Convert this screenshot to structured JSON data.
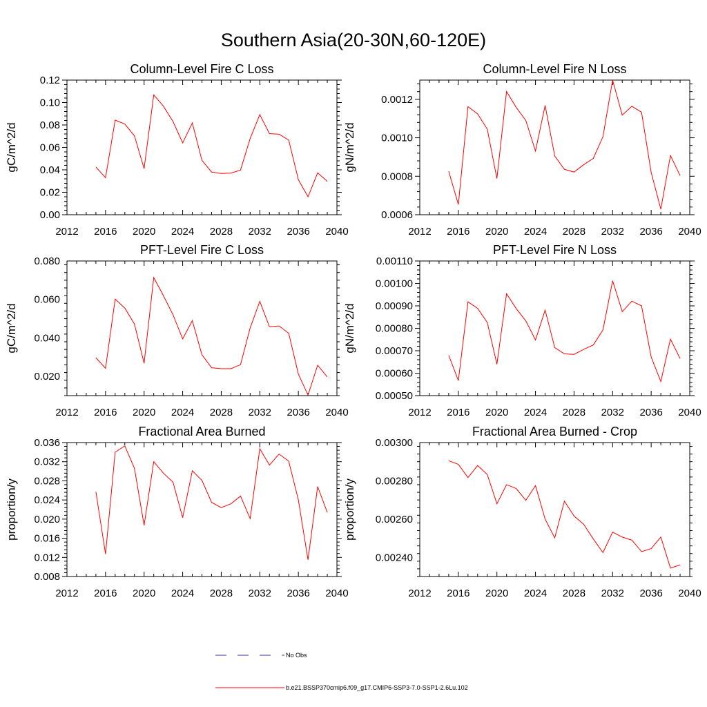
{
  "title": "Southern Asia(20-30N,60-120E)",
  "legend": {
    "items": [
      {
        "label": "No Obs",
        "color": "#3a3aa8",
        "dash": "dashed"
      },
      {
        "label": "b.e21.BSSP370cmip6.f09_g17.CMIP6-SSP3-7.0-SSP1-2.6Lu.102",
        "color": "#ff0000",
        "dash": "solid"
      }
    ]
  },
  "chart_data": [
    {
      "type": "line",
      "title": "Column-Level Fire C Loss",
      "ylabel": "gC/m^2/d",
      "xlim": [
        2012,
        2040
      ],
      "ylim": [
        0.0,
        0.12
      ],
      "xticks": [
        2012,
        2016,
        2020,
        2024,
        2028,
        2032,
        2036,
        2040
      ],
      "yticks": [
        "0.00",
        "0.02",
        "0.04",
        "0.06",
        "0.08",
        "0.10",
        "0.12"
      ],
      "x": [
        2015,
        2016,
        2017,
        2018,
        2019,
        2020,
        2021,
        2022,
        2023,
        2024,
        2025,
        2026,
        2027,
        2028,
        2029,
        2030,
        2031,
        2032,
        2033,
        2034,
        2035,
        2036,
        2037,
        2038,
        2039
      ],
      "series": [
        {
          "name": "b.e21.BSSP370cmip6.f09_g17.CMIP6-SSP3-7.0-SSP1-2.6Lu.102",
          "color": "#ff0000",
          "values": [
            0.0425,
            0.033,
            0.0843,
            0.0808,
            0.0703,
            0.0411,
            0.1068,
            0.0968,
            0.083,
            0.064,
            0.0818,
            0.0485,
            0.038,
            0.0368,
            0.0371,
            0.0398,
            0.0679,
            0.0892,
            0.0723,
            0.0718,
            0.0665,
            0.0312,
            0.016,
            0.0373,
            0.0298
          ]
        }
      ]
    },
    {
      "type": "line",
      "title": "Column-Level Fire N Loss",
      "ylabel": "gN/m^2/d",
      "xlim": [
        2012,
        2040
      ],
      "ylim": [
        0.0006,
        0.0013
      ],
      "xticks": [
        2012,
        2016,
        2020,
        2024,
        2028,
        2032,
        2036,
        2040
      ],
      "yticks": [
        "0.0006",
        "0.0008",
        "0.0010",
        "0.0012"
      ],
      "x": [
        2015,
        2016,
        2017,
        2018,
        2019,
        2020,
        2021,
        2022,
        2023,
        2024,
        2025,
        2026,
        2027,
        2028,
        2029,
        2030,
        2031,
        2032,
        2033,
        2034,
        2035,
        2036,
        2037,
        2038,
        2039
      ],
      "series": [
        {
          "name": "b.e21.BSSP370cmip6.f09_g17.CMIP6-SSP3-7.0-SSP1-2.6Lu.102",
          "color": "#ff0000",
          "values": [
            0.000826,
            0.000653,
            0.001162,
            0.001124,
            0.001045,
            0.000788,
            0.001241,
            0.001158,
            0.00109,
            0.000931,
            0.001168,
            0.000905,
            0.000836,
            0.000822,
            0.00086,
            0.000893,
            0.001006,
            0.0013,
            0.001118,
            0.001164,
            0.001133,
            0.00082,
            0.000629,
            0.000908,
            0.000803
          ]
        }
      ]
    },
    {
      "type": "line",
      "title": "PFT-Level Fire C Loss",
      "ylabel": "gC/m^2/d",
      "xlim": [
        2012,
        2040
      ],
      "ylim": [
        0.01,
        0.08
      ],
      "xticks": [
        2012,
        2016,
        2020,
        2024,
        2028,
        2032,
        2036,
        2040
      ],
      "yticks": [
        "0.020",
        "0.040",
        "0.060",
        "0.080"
      ],
      "x": [
        2015,
        2016,
        2017,
        2018,
        2019,
        2020,
        2021,
        2022,
        2023,
        2024,
        2025,
        2026,
        2027,
        2028,
        2029,
        2030,
        2031,
        2032,
        2033,
        2034,
        2035,
        2036,
        2037,
        2038,
        2039
      ],
      "series": [
        {
          "name": "b.e21.BSSP370cmip6.f09_g17.CMIP6-SSP3-7.0-SSP1-2.6Lu.102",
          "color": "#ff0000",
          "values": [
            0.0297,
            0.0242,
            0.0602,
            0.0555,
            0.0472,
            0.0268,
            0.0714,
            0.062,
            0.052,
            0.0395,
            0.049,
            0.0312,
            0.0245,
            0.024,
            0.024,
            0.0261,
            0.0452,
            0.059,
            0.0458,
            0.0462,
            0.0424,
            0.0212,
            0.0103,
            0.0258,
            0.0197
          ]
        }
      ]
    },
    {
      "type": "line",
      "title": "PFT-Level Fire N Loss",
      "ylabel": "gN/m^2/d",
      "xlim": [
        2012,
        2040
      ],
      "ylim": [
        0.0005,
        0.0011
      ],
      "xticks": [
        2012,
        2016,
        2020,
        2024,
        2028,
        2032,
        2036,
        2040
      ],
      "yticks": [
        "0.00050",
        "0.00060",
        "0.00070",
        "0.00080",
        "0.00090",
        "0.00100",
        "0.00110"
      ],
      "x": [
        2015,
        2016,
        2017,
        2018,
        2019,
        2020,
        2021,
        2022,
        2023,
        2024,
        2025,
        2026,
        2027,
        2028,
        2029,
        2030,
        2031,
        2032,
        2033,
        2034,
        2035,
        2036,
        2037,
        2038,
        2039
      ],
      "series": [
        {
          "name": "b.e21.BSSP370cmip6.f09_g17.CMIP6-SSP3-7.0-SSP1-2.6Lu.102",
          "color": "#ff0000",
          "values": [
            0.00068,
            0.000567,
            0.000918,
            0.000889,
            0.000826,
            0.00064,
            0.000954,
            0.000888,
            0.000833,
            0.000748,
            0.000881,
            0.000714,
            0.000686,
            0.000684,
            0.000706,
            0.000726,
            0.000793,
            0.001012,
            0.000874,
            0.000921,
            0.0009,
            0.000672,
            0.000563,
            0.000752,
            0.000665
          ]
        }
      ]
    },
    {
      "type": "line",
      "title": "Fractional Area Burned",
      "ylabel": "proportion/y",
      "xlim": [
        2012,
        2040
      ],
      "ylim": [
        0.008,
        0.036
      ],
      "xticks": [
        2012,
        2016,
        2020,
        2024,
        2028,
        2032,
        2036,
        2040
      ],
      "yticks": [
        "0.008",
        "0.012",
        "0.016",
        "0.020",
        "0.024",
        "0.028",
        "0.032",
        "0.036"
      ],
      "x": [
        2015,
        2016,
        2017,
        2018,
        2019,
        2020,
        2021,
        2022,
        2023,
        2024,
        2025,
        2026,
        2027,
        2028,
        2029,
        2030,
        2031,
        2032,
        2033,
        2034,
        2035,
        2036,
        2037,
        2038,
        2039
      ],
      "series": [
        {
          "name": "b.e21.BSSP370cmip6.f09_g17.CMIP6-SSP3-7.0-SSP1-2.6Lu.102",
          "color": "#ff0000",
          "values": [
            0.0257,
            0.0127,
            0.034,
            0.0353,
            0.0306,
            0.0187,
            0.032,
            0.0296,
            0.0277,
            0.0203,
            0.0301,
            0.0281,
            0.0235,
            0.0224,
            0.0232,
            0.0248,
            0.0201,
            0.0347,
            0.0313,
            0.0336,
            0.0321,
            0.024,
            0.0115,
            0.0268,
            0.0214
          ]
        }
      ]
    },
    {
      "type": "line",
      "title": "Fractional Area Burned - Crop",
      "ylabel": "proportion/y",
      "xlim": [
        2012,
        2040
      ],
      "ylim": [
        0.0023,
        0.003
      ],
      "xticks": [
        2012,
        2016,
        2020,
        2024,
        2028,
        2032,
        2036,
        2040
      ],
      "yticks": [
        "0.00240",
        "0.00260",
        "0.00280",
        "0.00300"
      ],
      "x": [
        2015,
        2016,
        2017,
        2018,
        2019,
        2020,
        2021,
        2022,
        2023,
        2024,
        2025,
        2026,
        2027,
        2028,
        2029,
        2030,
        2031,
        2032,
        2033,
        2034,
        2035,
        2036,
        2037,
        2038,
        2039
      ],
      "series": [
        {
          "name": "b.e21.BSSP370cmip6.f09_g17.CMIP6-SSP3-7.0-SSP1-2.6Lu.102",
          "color": "#ff0000",
          "values": [
            0.002905,
            0.002886,
            0.002817,
            0.00288,
            0.002833,
            0.00268,
            0.00278,
            0.00276,
            0.002698,
            0.002775,
            0.0026,
            0.002502,
            0.002694,
            0.002616,
            0.002573,
            0.002496,
            0.002425,
            0.002532,
            0.002506,
            0.00249,
            0.00243,
            0.002446,
            0.002506,
            0.002344,
            0.002361
          ]
        }
      ]
    }
  ]
}
